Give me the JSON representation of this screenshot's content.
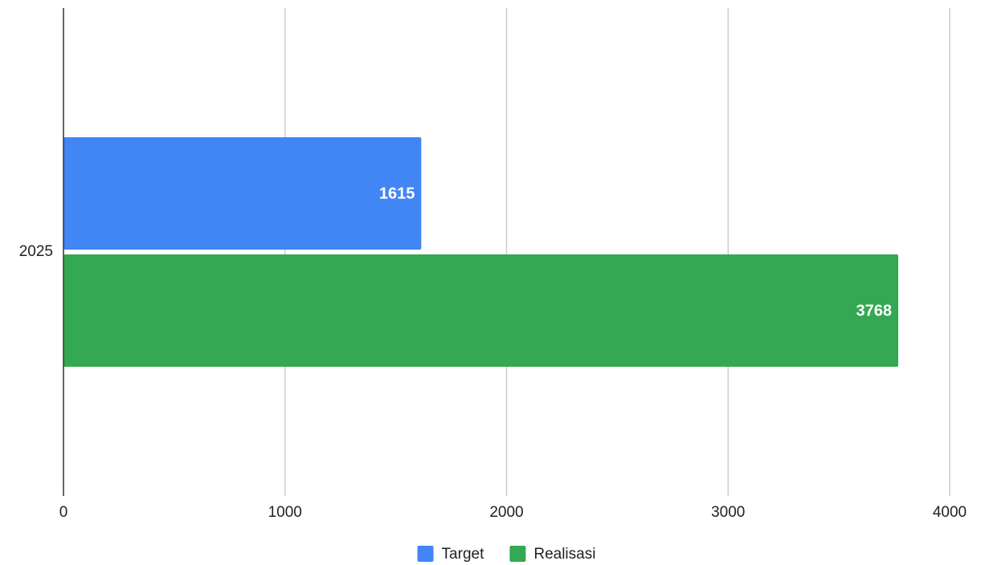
{
  "chart_data": {
    "type": "bar",
    "orientation": "horizontal",
    "categories": [
      "2025"
    ],
    "series": [
      {
        "name": "Target",
        "color": "#4285f4",
        "values": [
          1615
        ]
      },
      {
        "name": "Realisasi",
        "color": "#34a853",
        "values": [
          3768
        ]
      }
    ],
    "xlim": [
      0,
      4000
    ],
    "xticks": [
      0,
      1000,
      2000,
      3000,
      4000
    ],
    "grid": true,
    "legend": "bottom"
  }
}
